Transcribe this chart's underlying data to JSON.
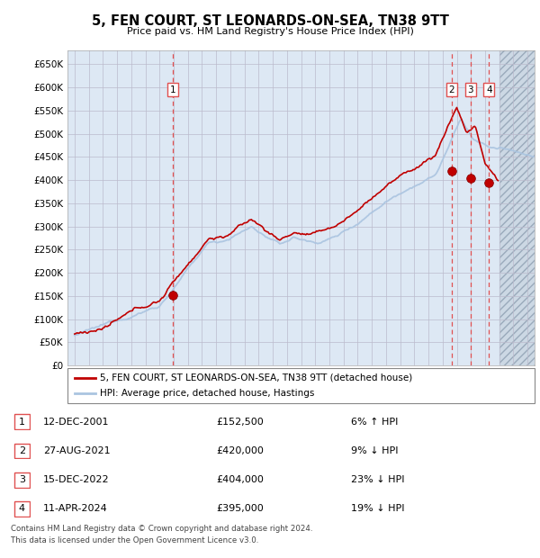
{
  "title": "5, FEN COURT, ST LEONARDS-ON-SEA, TN38 9TT",
  "subtitle": "Price paid vs. HM Land Registry's House Price Index (HPI)",
  "legend_line1": "5, FEN COURT, ST LEONARDS-ON-SEA, TN38 9TT (detached house)",
  "legend_line2": "HPI: Average price, detached house, Hastings",
  "footer1": "Contains HM Land Registry data © Crown copyright and database right 2024.",
  "footer2": "This data is licensed under the Open Government Licence v3.0.",
  "transactions": [
    {
      "num": 1,
      "date": "12-DEC-2001",
      "price": 152500,
      "pct": "6%",
      "dir": "↑"
    },
    {
      "num": 2,
      "date": "27-AUG-2021",
      "price": 420000,
      "pct": "9%",
      "dir": "↓"
    },
    {
      "num": 3,
      "date": "15-DEC-2022",
      "price": 404000,
      "pct": "23%",
      "dir": "↓"
    },
    {
      "num": 4,
      "date": "11-APR-2024",
      "price": 395000,
      "pct": "19%",
      "dir": "↓"
    }
  ],
  "transaction_years": [
    2001.96,
    2021.65,
    2022.96,
    2024.28
  ],
  "transaction_prices": [
    152500,
    420000,
    404000,
    395000
  ],
  "ylim": [
    0,
    680000
  ],
  "xlim_start": 1994.5,
  "xlim_end": 2027.5,
  "yticks": [
    0,
    50000,
    100000,
    150000,
    200000,
    250000,
    300000,
    350000,
    400000,
    450000,
    500000,
    550000,
    600000,
    650000
  ],
  "ytick_labels": [
    "£0",
    "£50K",
    "£100K",
    "£150K",
    "£200K",
    "£250K",
    "£300K",
    "£350K",
    "£400K",
    "£450K",
    "£500K",
    "£550K",
    "£600K",
    "£650K"
  ],
  "hpi_color": "#aac4e0",
  "price_color": "#c00000",
  "dashed_line_color": "#e05050",
  "grid_color": "#bbbbcc",
  "bg_color": "#dde8f4",
  "future_bg_color": "#d0d8e4",
  "future_hatch_color": "#b0b8c8",
  "future_year": 2025.0,
  "xtick_start": 1995,
  "xtick_end": 2027
}
